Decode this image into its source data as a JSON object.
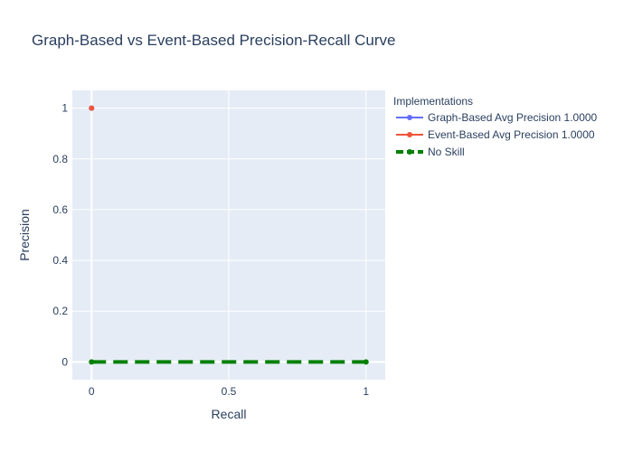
{
  "chart_data": {
    "type": "line",
    "title": "Graph-Based vs Event-Based Precision-Recall Curve",
    "xlabel": "Recall",
    "ylabel": "Precision",
    "xlim": [
      -0.07,
      1.07
    ],
    "ylim": [
      -0.07,
      1.07
    ],
    "xticks": [
      0,
      0.5,
      1
    ],
    "xtick_labels": [
      "0",
      "0.5",
      "1"
    ],
    "yticks": [
      0,
      0.2,
      0.4,
      0.6,
      0.8,
      1
    ],
    "ytick_labels": [
      "0",
      "0.2",
      "0.4",
      "0.6",
      "0.8",
      "1"
    ],
    "grid": true,
    "legend_position": "right",
    "legend_title": "Implementations",
    "series": [
      {
        "name": "Graph-Based Avg Precision 1.0000",
        "color": "#636efa",
        "dash": "solid",
        "width": 2,
        "x": [
          0
        ],
        "y": [
          1
        ]
      },
      {
        "name": "Event-Based Avg Precision 1.0000",
        "color": "#ef553b",
        "dash": "solid",
        "width": 2,
        "x": [
          0
        ],
        "y": [
          1
        ]
      },
      {
        "name": "No Skill",
        "color": "#008000",
        "dash": "dash",
        "width": 4,
        "x": [
          0,
          1
        ],
        "y": [
          0,
          0
        ]
      }
    ]
  }
}
